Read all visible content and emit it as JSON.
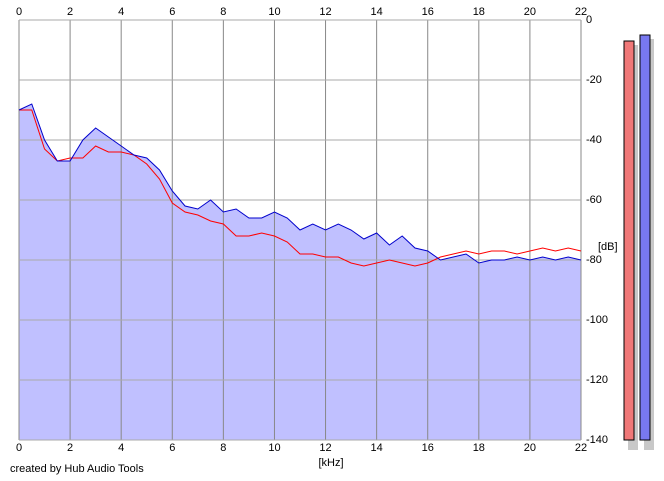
{
  "chart_data": {
    "type": "line",
    "x_label": "[kHz]",
    "y_label": "[dB]",
    "credit": "created by Hub Audio Tools",
    "x": [
      0,
      0.5,
      1,
      1.5,
      2,
      2.5,
      3,
      3.5,
      4,
      4.5,
      5,
      5.5,
      6,
      6.5,
      7,
      7.5,
      8,
      8.5,
      9,
      9.5,
      10,
      10.5,
      11,
      11.5,
      12,
      12.5,
      13,
      13.5,
      14,
      14.5,
      15,
      15.5,
      16,
      16.5,
      17,
      17.5,
      18,
      18.5,
      19,
      19.5,
      20,
      20.5,
      21,
      21.5,
      22
    ],
    "series": [
      {
        "color": "#ff0000",
        "values": [
          -30,
          -30,
          -43,
          -47,
          -46,
          -46,
          -42,
          -44,
          -44,
          -45,
          -48,
          -53,
          -61,
          -64,
          -65,
          -67,
          -68,
          -72,
          -72,
          -71,
          -72,
          -74,
          -78,
          -78,
          -79,
          -79,
          -81,
          -82,
          -81,
          -80,
          -81,
          -82,
          -81,
          -79,
          -78,
          -77,
          -78,
          -77,
          -77,
          -78,
          -77,
          -76,
          -77,
          -76,
          -77
        ]
      },
      {
        "color": "#0000cc",
        "fill": "#c0c0ff",
        "values": [
          -30,
          -28,
          -40,
          -47,
          -47,
          -40,
          -36,
          -39,
          -42,
          -45,
          -46,
          -50,
          -57,
          -62,
          -63,
          -60,
          -64,
          -63,
          -66,
          -66,
          -64,
          -66,
          -70,
          -68,
          -70,
          -68,
          -70,
          -73,
          -71,
          -75,
          -72,
          -76,
          -77,
          -80,
          -79,
          -78,
          -81,
          -80,
          -80,
          -79,
          -80,
          -79,
          -80,
          -79,
          -80
        ]
      }
    ],
    "xlim": [
      0,
      22
    ],
    "ylim": [
      -140,
      0
    ],
    "xticks": [
      0,
      2,
      4,
      6,
      8,
      10,
      12,
      14,
      16,
      18,
      20,
      22
    ],
    "yticks": [
      0,
      -20,
      -40,
      -60,
      -80,
      -100,
      -120,
      -140
    ],
    "grid": true,
    "level_meter": {
      "colors": [
        "#f07878",
        "#7878f0"
      ],
      "values": [
        -7,
        -5
      ]
    }
  }
}
